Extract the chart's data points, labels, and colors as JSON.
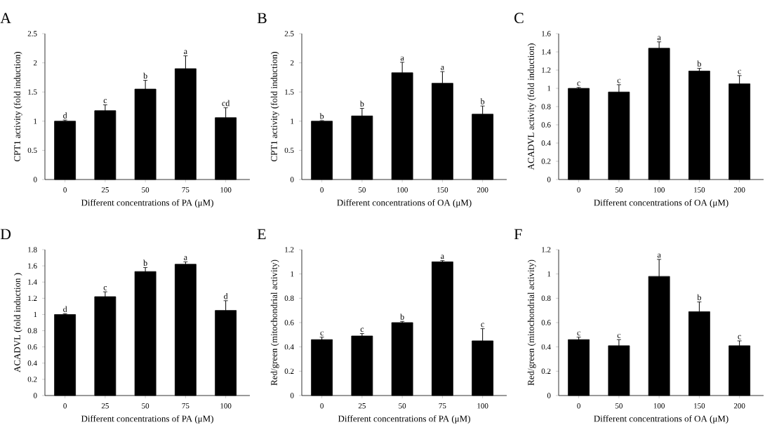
{
  "chart_data": [
    {
      "type": "bar",
      "title": "A",
      "xlabel": "Different concentrations of PA (μM)",
      "ylabel": "CPT1 activity  (fold induction)",
      "categories": [
        "0",
        "25",
        "50",
        "75",
        "100"
      ],
      "values": [
        1.0,
        1.18,
        1.55,
        1.9,
        1.06
      ],
      "errors": [
        0.02,
        0.1,
        0.15,
        0.22,
        0.17
      ],
      "color": "#000000",
      "ylim": [
        0,
        2.5
      ],
      "yticks": [
        0,
        0.5,
        1,
        1.5,
        2,
        2.5
      ],
      "annotations": [
        {
          "text": "d",
          "x": "0",
          "y": 1.0
        },
        {
          "text": "c",
          "x": "25",
          "y": 1.18
        },
        {
          "text": "b",
          "x": "50",
          "y": 1.55
        },
        {
          "text": "a",
          "x": "75",
          "y": 1.9
        },
        {
          "text": "cd",
          "x": "100",
          "y": 1.06
        }
      ]
    },
    {
      "type": "bar",
      "title": "B",
      "xlabel": "Different concentrations of OA (μM)",
      "ylabel": "CPT1 activity (fold induction)",
      "categories": [
        "0",
        "50",
        "100",
        "150",
        "200"
      ],
      "values": [
        1.0,
        1.09,
        1.83,
        1.65,
        1.12
      ],
      "errors": [
        0.01,
        0.13,
        0.18,
        0.2,
        0.14
      ],
      "color": "#000000",
      "ylim": [
        0,
        2.5
      ],
      "yticks": [
        0,
        0.5,
        1,
        1.5,
        2,
        2.5
      ],
      "annotations": [
        {
          "text": "b",
          "x": "0",
          "y": 1.0
        },
        {
          "text": "b",
          "x": "50",
          "y": 1.09
        },
        {
          "text": "a",
          "x": "100",
          "y": 1.83
        },
        {
          "text": "a",
          "x": "150",
          "y": 1.65
        },
        {
          "text": "b",
          "x": "200",
          "y": 1.12
        }
      ]
    },
    {
      "type": "bar",
      "title": "C",
      "xlabel": "Different concentrations of OA (μM)",
      "ylabel": "ACADVL activity (fold induction)",
      "categories": [
        "0",
        "50",
        "100",
        "150",
        "200"
      ],
      "values": [
        1.0,
        0.96,
        1.44,
        1.19,
        1.05
      ],
      "errors": [
        0.01,
        0.08,
        0.07,
        0.03,
        0.09
      ],
      "color": "#000000",
      "ylim": [
        0,
        1.6
      ],
      "yticks": [
        0,
        0.2,
        0.4,
        0.6,
        0.8,
        1,
        1.2,
        1.4,
        1.6
      ],
      "annotations": [
        {
          "text": "c",
          "x": "0",
          "y": 1.0
        },
        {
          "text": "c",
          "x": "50",
          "y": 0.96
        },
        {
          "text": "a",
          "x": "100",
          "y": 1.44
        },
        {
          "text": "b",
          "x": "150",
          "y": 1.19
        },
        {
          "text": "c",
          "x": "200",
          "y": 1.05
        }
      ]
    },
    {
      "type": "bar",
      "title": "D",
      "xlabel": "Different concentrations of PA (μM)",
      "ylabel": "ACADVL (fold induction )",
      "categories": [
        "0",
        "25",
        "50",
        "75",
        "100"
      ],
      "values": [
        1.0,
        1.22,
        1.53,
        1.62,
        1.05
      ],
      "errors": [
        0.01,
        0.06,
        0.05,
        0.03,
        0.12
      ],
      "color": "#000000",
      "ylim": [
        0,
        1.8
      ],
      "yticks": [
        0,
        0.2,
        0.4,
        0.6,
        0.8,
        1,
        1.2,
        1.4,
        1.6,
        1.8
      ],
      "annotations": [
        {
          "text": "d",
          "x": "0",
          "y": 1.0
        },
        {
          "text": "c",
          "x": "25",
          "y": 1.22
        },
        {
          "text": "b",
          "x": "50",
          "y": 1.53
        },
        {
          "text": "a",
          "x": "75",
          "y": 1.62
        },
        {
          "text": "d",
          "x": "100",
          "y": 1.05
        }
      ]
    },
    {
      "type": "bar",
      "title": "E",
      "xlabel": "Different concentrations of PA (μM)",
      "ylabel": "Red/green (mitochondrial activity)",
      "categories": [
        "0",
        "25",
        "50",
        "75",
        "100"
      ],
      "values": [
        0.46,
        0.49,
        0.6,
        1.1,
        0.45
      ],
      "errors": [
        0.02,
        0.02,
        0.01,
        0.01,
        0.1
      ],
      "color": "#000000",
      "ylim": [
        0,
        1.2
      ],
      "yticks": [
        0,
        0.2,
        0.4,
        0.6,
        0.8,
        1,
        1.2
      ],
      "annotations": [
        {
          "text": "c",
          "x": "0",
          "y": 0.46
        },
        {
          "text": "c",
          "x": "25",
          "y": 0.49
        },
        {
          "text": "b",
          "x": "50",
          "y": 0.6
        },
        {
          "text": "a",
          "x": "75",
          "y": 1.1
        },
        {
          "text": "c",
          "x": "100",
          "y": 0.45
        }
      ]
    },
    {
      "type": "bar",
      "title": "F",
      "xlabel": "Different concentrations of OA (μM)",
      "ylabel": "Red/green (mitochondrial activity)",
      "categories": [
        "0",
        "50",
        "100",
        "150",
        "200"
      ],
      "values": [
        0.46,
        0.41,
        0.98,
        0.69,
        0.41
      ],
      "errors": [
        0.02,
        0.05,
        0.14,
        0.08,
        0.04
      ],
      "color": "#000000",
      "ylim": [
        0,
        1.2
      ],
      "yticks": [
        0,
        0.2,
        0.4,
        0.6,
        0.8,
        1,
        1.2
      ],
      "annotations": [
        {
          "text": "c",
          "x": "0",
          "y": 0.46
        },
        {
          "text": "c",
          "x": "50",
          "y": 0.41
        },
        {
          "text": "a",
          "x": "100",
          "y": 0.98
        },
        {
          "text": "b",
          "x": "150",
          "y": 0.69
        },
        {
          "text": "c",
          "x": "200",
          "y": 0.41
        }
      ]
    }
  ]
}
